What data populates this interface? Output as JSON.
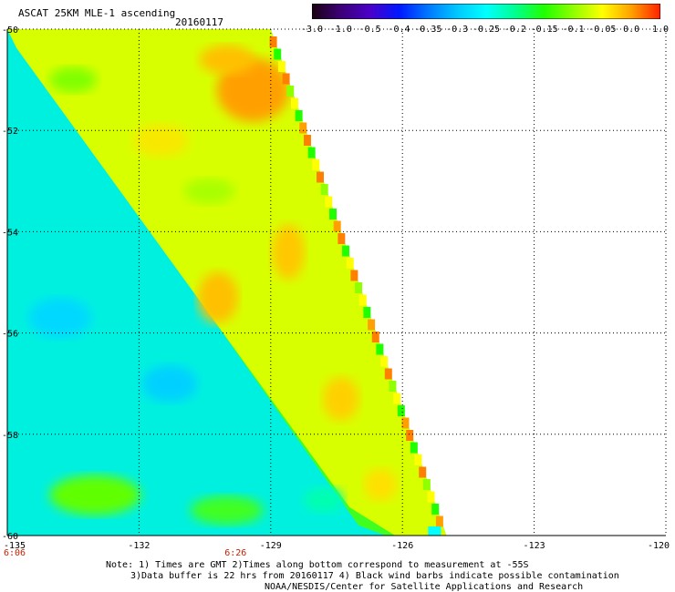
{
  "header": {
    "title": "ASCAT 25KM MLE-1 ascending",
    "date": "20160117"
  },
  "colorbar": {
    "labels": [
      "-3.0",
      "-1.0",
      "-0.5",
      "-0.4",
      "-0.35",
      "-0.3",
      "-0.25",
      "-0.2",
      "-0.15",
      "-0.1",
      "-0.05",
      "0.0",
      "1.0"
    ],
    "colors": [
      "#1a0010",
      "#3c0078",
      "#4a00c8",
      "#0018ff",
      "#0078ff",
      "#00c8ff",
      "#00ffff",
      "#00ff90",
      "#20ff00",
      "#90ff00",
      "#ffff00",
      "#ffa000",
      "#ff2000"
    ]
  },
  "map": {
    "lat_labels": [
      "-50",
      "-52",
      "-54",
      "-56",
      "-58",
      "-60"
    ],
    "lon_labels": [
      "-135",
      "-132",
      "-129",
      "-126",
      "-123",
      "-120"
    ],
    "lat_range": [
      -60,
      -50
    ],
    "lon_range": [
      -135,
      -120
    ],
    "grid": true,
    "swath_edge_lon_at_north": -129,
    "swath_edge_lon_at_south": -125,
    "diagonal_edge": {
      "from": [
        -135,
        -50.3
      ],
      "to": [
        -127,
        -59.8
      ]
    },
    "west_region": "cyan",
    "east_region": "yellow-orange",
    "time_labels": [
      {
        "lon": -135,
        "text": "6:06"
      },
      {
        "lon": -129.8,
        "text": "6:26"
      }
    ]
  },
  "notes": {
    "line1": "Note: 1) Times are GMT 2)Times along bottom correspond to measurement at -55S",
    "line2": "3)Data buffer is 22 hrs from 20160117 4) Black wind barbs indicate possible contamination",
    "line3": "NOAA/NESDIS/Center for Satellite Applications and Research"
  }
}
